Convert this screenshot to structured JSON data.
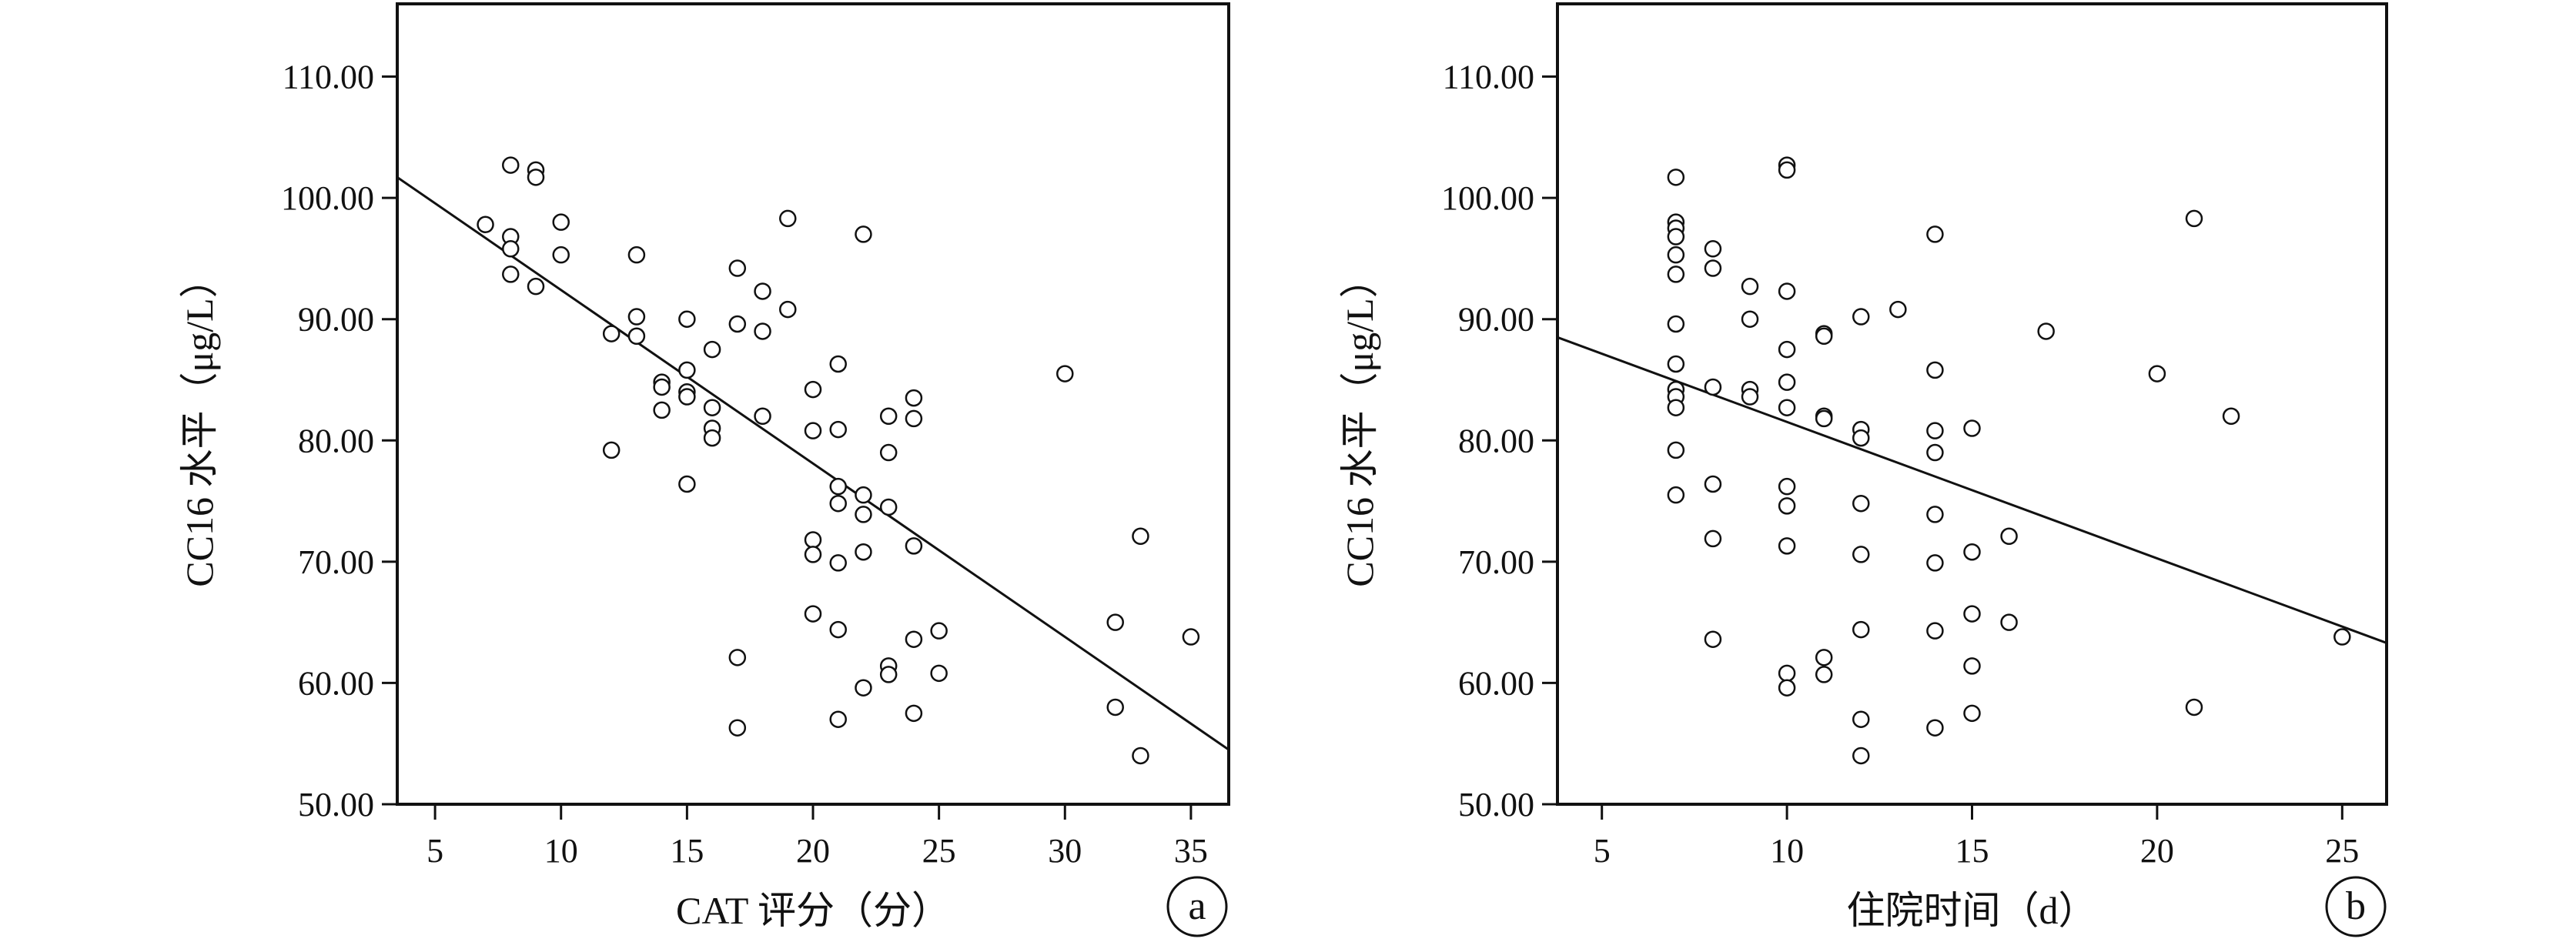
{
  "chart_data": [
    {
      "type": "scatter",
      "panel": "a",
      "xlabel": "CAT 评分（分）",
      "ylabel": "CC16 水平（μg/L）",
      "xlim": [
        3.5,
        36.5
      ],
      "ylim": [
        50,
        116
      ],
      "xticks": [
        5,
        10,
        15,
        20,
        25,
        30,
        35
      ],
      "yticks": [
        50,
        60,
        70,
        80,
        90,
        100,
        110
      ],
      "xtick_labels": [
        "5",
        "10",
        "15",
        "20",
        "25",
        "30",
        "35"
      ],
      "ytick_labels": [
        "50.00",
        "60.00",
        "70.00",
        "80.00",
        "90.00",
        "100.00",
        "110.00"
      ],
      "points": [
        [
          7,
          97.8
        ],
        [
          8,
          102.7
        ],
        [
          8,
          96.8
        ],
        [
          8,
          95.8
        ],
        [
          8,
          93.7
        ],
        [
          9,
          102.3
        ],
        [
          9,
          101.7
        ],
        [
          9,
          92.7
        ],
        [
          10,
          98
        ],
        [
          10,
          95.3
        ],
        [
          12,
          88.8
        ],
        [
          12,
          79.2
        ],
        [
          13,
          95.3
        ],
        [
          13,
          90.2
        ],
        [
          13,
          88.6
        ],
        [
          14,
          84.8
        ],
        [
          14,
          84.4
        ],
        [
          14,
          82.5
        ],
        [
          15,
          90
        ],
        [
          15,
          85.8
        ],
        [
          15,
          84
        ],
        [
          15,
          83.6
        ],
        [
          15,
          76.4
        ],
        [
          16,
          87.5
        ],
        [
          16,
          82.7
        ],
        [
          16,
          81
        ],
        [
          16,
          80.2
        ],
        [
          17,
          94.2
        ],
        [
          17,
          89.6
        ],
        [
          17,
          62.1
        ],
        [
          17,
          56.3
        ],
        [
          18,
          92.3
        ],
        [
          18,
          89
        ],
        [
          18,
          82
        ],
        [
          19,
          98.3
        ],
        [
          19,
          90.8
        ],
        [
          20,
          84.2
        ],
        [
          20,
          80.8
        ],
        [
          20,
          71.8
        ],
        [
          20,
          70.6
        ],
        [
          20,
          65.7
        ],
        [
          21,
          86.3
        ],
        [
          21,
          80.9
        ],
        [
          21,
          76.2
        ],
        [
          21,
          74.8
        ],
        [
          21,
          69.9
        ],
        [
          21,
          64.4
        ],
        [
          21,
          57
        ],
        [
          22,
          97
        ],
        [
          22,
          75.5
        ],
        [
          22,
          73.9
        ],
        [
          22,
          70.8
        ],
        [
          22,
          59.6
        ],
        [
          23,
          82
        ],
        [
          23,
          79
        ],
        [
          23,
          74.5
        ],
        [
          23,
          61.4
        ],
        [
          23,
          60.7
        ],
        [
          24,
          83.5
        ],
        [
          24,
          81.8
        ],
        [
          24,
          71.3
        ],
        [
          24,
          63.6
        ],
        [
          24,
          57.5
        ],
        [
          25,
          64.3
        ],
        [
          25,
          60.8
        ],
        [
          30,
          85.5
        ],
        [
          32,
          65
        ],
        [
          32,
          58
        ],
        [
          33,
          72.1
        ],
        [
          33,
          54
        ],
        [
          35,
          63.8
        ]
      ],
      "fit_line": {
        "x": [
          3.5,
          36.5
        ],
        "y": [
          101.7,
          54.5
        ]
      }
    },
    {
      "type": "scatter",
      "panel": "b",
      "xlabel": "住院时间（d）",
      "ylabel": "CC16 水平（μg/L）",
      "xlim": [
        3.8,
        26.2
      ],
      "ylim": [
        50,
        116
      ],
      "xticks": [
        5,
        10,
        15,
        20,
        25
      ],
      "yticks": [
        50,
        60,
        70,
        80,
        90,
        100,
        110
      ],
      "xtick_labels": [
        "5",
        "10",
        "15",
        "20",
        "25"
      ],
      "ytick_labels": [
        "50.00",
        "60.00",
        "70.00",
        "80.00",
        "90.00",
        "100.00",
        "110.00"
      ],
      "points": [
        [
          7,
          101.7
        ],
        [
          7,
          98
        ],
        [
          7,
          97.5
        ],
        [
          7,
          96.8
        ],
        [
          7,
          95.3
        ],
        [
          7,
          93.7
        ],
        [
          7,
          89.6
        ],
        [
          7,
          86.3
        ],
        [
          7,
          84.2
        ],
        [
          7,
          83.6
        ],
        [
          7,
          82.7
        ],
        [
          7,
          79.2
        ],
        [
          7,
          75.5
        ],
        [
          8,
          95.8
        ],
        [
          8,
          94.2
        ],
        [
          8,
          84.4
        ],
        [
          8,
          76.4
        ],
        [
          8,
          71.9
        ],
        [
          8,
          63.6
        ],
        [
          9,
          92.7
        ],
        [
          9,
          90
        ],
        [
          9,
          84.2
        ],
        [
          9,
          83.6
        ],
        [
          10,
          102.7
        ],
        [
          10,
          102.3
        ],
        [
          10,
          92.3
        ],
        [
          10,
          87.5
        ],
        [
          10,
          84.8
        ],
        [
          10,
          82.7
        ],
        [
          10,
          76.2
        ],
        [
          10,
          74.6
        ],
        [
          10,
          71.3
        ],
        [
          10,
          60.8
        ],
        [
          10,
          59.6
        ],
        [
          11,
          88.8
        ],
        [
          11,
          88.6
        ],
        [
          11,
          82
        ],
        [
          11,
          81.8
        ],
        [
          11,
          62.1
        ],
        [
          11,
          60.7
        ],
        [
          12,
          90.2
        ],
        [
          12,
          80.9
        ],
        [
          12,
          80.2
        ],
        [
          12,
          74.8
        ],
        [
          12,
          70.6
        ],
        [
          12,
          64.4
        ],
        [
          12,
          57
        ],
        [
          12,
          54
        ],
        [
          13,
          90.8
        ],
        [
          14,
          97
        ],
        [
          14,
          85.8
        ],
        [
          14,
          80.8
        ],
        [
          14,
          79
        ],
        [
          14,
          73.9
        ],
        [
          14,
          69.9
        ],
        [
          14,
          64.3
        ],
        [
          14,
          56.3
        ],
        [
          15,
          81
        ],
        [
          15,
          70.8
        ],
        [
          15,
          65.7
        ],
        [
          15,
          61.4
        ],
        [
          15,
          57.5
        ],
        [
          16,
          72.1
        ],
        [
          16,
          65
        ],
        [
          17,
          89
        ],
        [
          20,
          85.5
        ],
        [
          21,
          98.3
        ],
        [
          21,
          58
        ],
        [
          22,
          82
        ],
        [
          25,
          63.8
        ]
      ],
      "fit_line": {
        "x": [
          3.8,
          26.2
        ],
        "y": [
          88.5,
          63.3
        ]
      }
    }
  ]
}
